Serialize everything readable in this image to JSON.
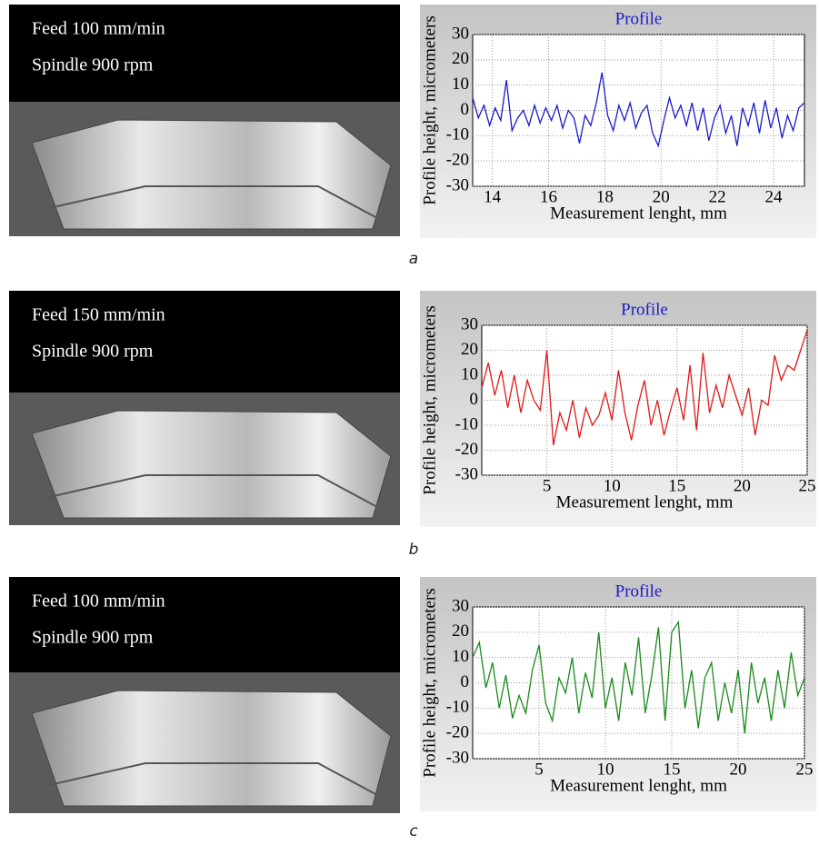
{
  "panels": [
    {
      "label": "a",
      "feed": "Feed 100 mm/min",
      "spindle": "Spindle 900 rpm"
    },
    {
      "label": "b",
      "feed": "Feed 150 mm/min",
      "spindle": "Spindle 900 rpm"
    },
    {
      "label": "c",
      "feed": "Feed 100 mm/min",
      "spindle": "Spindle 900 rpm"
    }
  ],
  "chart_data": [
    {
      "type": "line",
      "title": "Profile",
      "y_label": "Profile height, micrometers",
      "x_label": "Measurement lenght, mm",
      "color": "#1a1ac8",
      "grid": true,
      "xlim": [
        13.3,
        25.1
      ],
      "xticks": [
        14,
        16,
        18,
        20,
        22,
        24
      ],
      "ylim": [
        -30,
        30
      ],
      "yticks": [
        -30,
        -20,
        -10,
        0,
        10,
        20,
        30
      ],
      "x": [
        13.3,
        13.5,
        13.7,
        13.9,
        14.1,
        14.3,
        14.5,
        14.7,
        14.9,
        15.1,
        15.3,
        15.5,
        15.7,
        15.9,
        16.1,
        16.3,
        16.5,
        16.7,
        16.9,
        17.1,
        17.3,
        17.5,
        17.7,
        17.9,
        18.1,
        18.3,
        18.5,
        18.7,
        18.9,
        19.1,
        19.3,
        19.5,
        19.7,
        19.9,
        20.1,
        20.3,
        20.5,
        20.7,
        20.9,
        21.1,
        21.3,
        21.5,
        21.7,
        21.9,
        22.1,
        22.3,
        22.5,
        22.7,
        22.9,
        23.1,
        23.3,
        23.5,
        23.7,
        23.9,
        24.1,
        24.3,
        24.5,
        24.7,
        24.9,
        25.1
      ],
      "values": [
        5,
        -3,
        2,
        -6,
        1,
        -4,
        12,
        -8,
        -3,
        0,
        -6,
        2,
        -5,
        1,
        -4,
        2,
        -7,
        0,
        -3,
        -13,
        -2,
        -6,
        3,
        15,
        -2,
        -8,
        2,
        -4,
        3,
        -7,
        -1,
        2,
        -9,
        -14,
        -4,
        5,
        -3,
        2,
        -6,
        3,
        -8,
        1,
        -12,
        -3,
        2,
        -9,
        -2,
        -14,
        1,
        -6,
        3,
        -9,
        4,
        -7,
        1,
        -11,
        -2,
        -8,
        1,
        3
      ]
    },
    {
      "type": "line",
      "title": "Profile",
      "y_label": "Profile height, micrometers",
      "x_label": "Measurement lenght, mm",
      "color": "#e01818",
      "grid": true,
      "xlim": [
        0,
        25
      ],
      "xticks": [
        5,
        10,
        15,
        20,
        25
      ],
      "ylim": [
        -30,
        30
      ],
      "yticks": [
        -30,
        -20,
        -10,
        0,
        10,
        20,
        30
      ],
      "x": [
        0,
        0.5,
        1,
        1.5,
        2,
        2.5,
        3,
        3.5,
        4,
        4.5,
        5,
        5.5,
        6,
        6.5,
        7,
        7.5,
        8,
        8.5,
        9,
        9.5,
        10,
        10.5,
        11,
        11.5,
        12,
        12.5,
        13,
        13.5,
        14,
        14.5,
        15,
        15.5,
        16,
        16.5,
        17,
        17.5,
        18,
        18.5,
        19,
        19.5,
        20,
        20.5,
        21,
        21.5,
        22,
        22.5,
        23,
        23.5,
        24,
        24.5,
        25
      ],
      "values": [
        5,
        15,
        2,
        12,
        -3,
        10,
        -5,
        8,
        0,
        -4,
        20,
        -18,
        -5,
        -12,
        0,
        -15,
        -3,
        -10,
        -6,
        3,
        -8,
        12,
        -5,
        -16,
        -2,
        8,
        -10,
        0,
        -14,
        -4,
        5,
        -8,
        14,
        -12,
        19,
        -5,
        6,
        -3,
        10,
        2,
        -6,
        5,
        -14,
        0,
        -2,
        18,
        8,
        14,
        12,
        20,
        28
      ]
    },
    {
      "type": "line",
      "title": "Profile",
      "y_label": "Profile height, micrometers",
      "x_label": "Measurement lenght, mm",
      "color": "#1a8a1a",
      "grid": true,
      "xlim": [
        0,
        25
      ],
      "xticks": [
        5,
        10,
        15,
        20,
        25
      ],
      "ylim": [
        -30,
        30
      ],
      "yticks": [
        -30,
        -20,
        -10,
        0,
        10,
        20,
        30
      ],
      "x": [
        0,
        0.5,
        1,
        1.5,
        2,
        2.5,
        3,
        3.5,
        4,
        4.5,
        5,
        5.5,
        6,
        6.5,
        7,
        7.5,
        8,
        8.5,
        9,
        9.5,
        10,
        10.5,
        11,
        11.5,
        12,
        12.5,
        13,
        13.5,
        14,
        14.5,
        15,
        15.5,
        16,
        16.5,
        17,
        17.5,
        18,
        18.5,
        19,
        19.5,
        20,
        20.5,
        21,
        21.5,
        22,
        22.5,
        23,
        23.5,
        24,
        24.5,
        25
      ],
      "values": [
        10,
        16,
        -2,
        8,
        -10,
        3,
        -14,
        -5,
        -12,
        5,
        15,
        -8,
        -15,
        2,
        -4,
        10,
        -12,
        4,
        -6,
        20,
        -10,
        2,
        -15,
        8,
        -5,
        18,
        -12,
        3,
        22,
        -15,
        20,
        24,
        -10,
        5,
        -18,
        2,
        8,
        -15,
        0,
        -12,
        5,
        -20,
        8,
        -8,
        2,
        -15,
        5,
        -10,
        12,
        -5,
        2
      ]
    }
  ]
}
